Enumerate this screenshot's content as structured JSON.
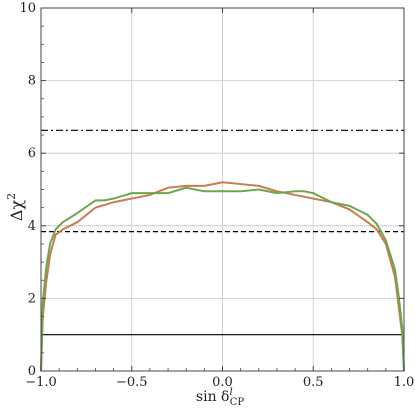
{
  "chart_data": {
    "type": "line",
    "title": "",
    "xlabel": "sin δ",
    "xlabel_sup": "l",
    "xlabel_sub": "CP",
    "ylabel": "Δχ",
    "ylabel_sup": "2",
    "xlim": [
      -1.0,
      1.0
    ],
    "ylim": [
      0,
      10
    ],
    "grid": true,
    "legend": "none",
    "x_ticks": [
      -1.0,
      -0.5,
      0.0,
      0.5,
      1.0
    ],
    "x_tick_labels": [
      "−1.0",
      "−0.5",
      "0.0",
      "0.5",
      "1.0"
    ],
    "y_ticks": [
      0,
      2,
      4,
      6,
      8,
      10
    ],
    "y_tick_labels": [
      "0",
      "2",
      "4",
      "6",
      "8",
      "10"
    ],
    "reference_lines": [
      {
        "y": 1.0,
        "style": "solid",
        "color": "#000000"
      },
      {
        "y": 3.84,
        "style": "dashed",
        "color": "#000000"
      },
      {
        "y": 6.63,
        "style": "dashdot",
        "color": "#000000"
      }
    ],
    "series": [
      {
        "color": "#cc7a4e",
        "x": [
          -1.0,
          -0.99,
          -0.97,
          -0.95,
          -0.92,
          -0.88,
          -0.8,
          -0.7,
          -0.6,
          -0.5,
          -0.4,
          -0.3,
          -0.2,
          -0.1,
          0.0,
          0.1,
          0.2,
          0.3,
          0.4,
          0.5,
          0.6,
          0.7,
          0.8,
          0.85,
          0.9,
          0.95,
          0.97,
          0.99,
          1.0
        ],
        "y": [
          0.0,
          1.5,
          2.5,
          3.2,
          3.75,
          3.9,
          4.1,
          4.5,
          4.65,
          4.75,
          4.85,
          5.05,
          5.1,
          5.1,
          5.2,
          5.15,
          5.1,
          4.95,
          4.85,
          4.75,
          4.65,
          4.45,
          4.1,
          3.9,
          3.5,
          2.6,
          1.8,
          1.0,
          0.0
        ]
      },
      {
        "color": "#6aa84f",
        "x": [
          -1.0,
          -0.99,
          -0.97,
          -0.95,
          -0.92,
          -0.88,
          -0.8,
          -0.7,
          -0.65,
          -0.6,
          -0.5,
          -0.4,
          -0.3,
          -0.2,
          -0.1,
          0.0,
          0.1,
          0.2,
          0.3,
          0.4,
          0.45,
          0.5,
          0.6,
          0.7,
          0.8,
          0.85,
          0.9,
          0.95,
          0.97,
          0.99,
          1.0
        ],
        "y": [
          0.0,
          1.9,
          2.9,
          3.5,
          3.9,
          4.1,
          4.35,
          4.7,
          4.7,
          4.75,
          4.9,
          4.9,
          4.9,
          5.05,
          4.95,
          4.95,
          4.95,
          5.0,
          4.9,
          4.95,
          4.95,
          4.9,
          4.65,
          4.55,
          4.3,
          4.05,
          3.6,
          2.8,
          2.1,
          1.2,
          0.0
        ]
      }
    ]
  }
}
